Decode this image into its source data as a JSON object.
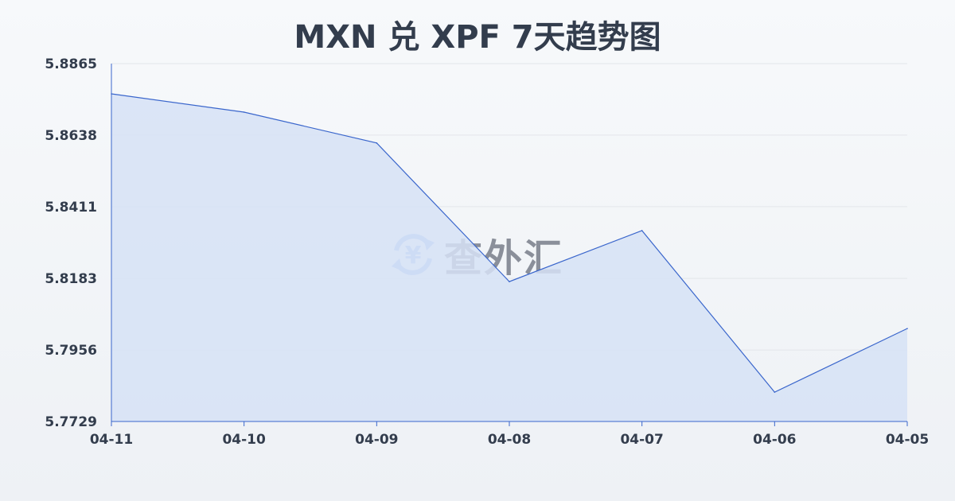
{
  "chart_data": {
    "type": "area",
    "title": "MXN 兑 XPF 7天趋势图",
    "categories": [
      "04-11",
      "04-10",
      "04-09",
      "04-08",
      "04-07",
      "04-06",
      "04-05"
    ],
    "values": [
      5.8769,
      5.8711,
      5.8613,
      5.8173,
      5.8335,
      5.7822,
      5.8024
    ],
    "yticks": [
      "5.8865",
      "5.8638",
      "5.8411",
      "5.8183",
      "5.7956",
      "5.7729"
    ],
    "ylim": [
      5.7729,
      5.8865
    ],
    "grid": true,
    "line_color": "#3a66cc",
    "fill_color": "#d6e2f6"
  },
  "watermark": {
    "text": "查外汇",
    "icon": "yen-exchange-icon",
    "color": "#8fb3ee"
  }
}
